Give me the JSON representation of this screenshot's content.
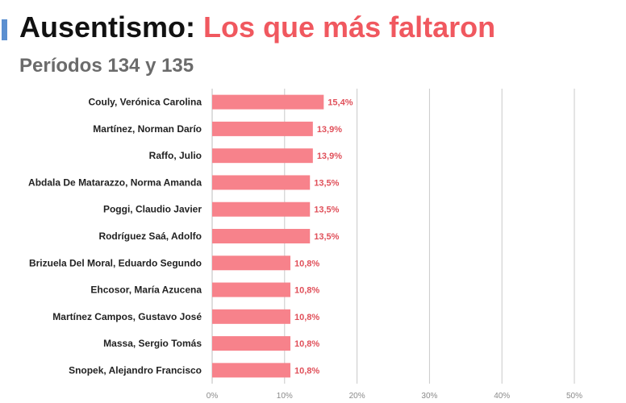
{
  "header": {
    "title_prefix": "Ausentismo:",
    "title_highlight": "Los que más faltaron",
    "subtitle": "Períodos 134 y 135"
  },
  "colors": {
    "accent": "#5b8fd0",
    "highlight": "#f0585f",
    "bar": "#f7828b",
    "value_text": "#e0505a",
    "grid": "#c9c9c9"
  },
  "chart_data": {
    "type": "bar",
    "orientation": "horizontal",
    "categories": [
      "Couly, Verónica Carolina",
      "Martínez, Norman Darío",
      "Raffo, Julio",
      "Abdala De Matarazzo, Norma Amanda",
      "Poggi, Claudio Javier",
      "Rodríguez Saá, Adolfo",
      "Brizuela Del Moral, Eduardo Segundo",
      "Ehcosor, María Azucena",
      "Martínez Campos, Gustavo José",
      "Massa, Sergio Tomás",
      "Snopek, Alejandro Francisco"
    ],
    "values": [
      15.4,
      13.9,
      13.9,
      13.5,
      13.5,
      13.5,
      10.8,
      10.8,
      10.8,
      10.8,
      10.8
    ],
    "value_labels": [
      "15,4%",
      "13,9%",
      "13,9%",
      "13,5%",
      "13,5%",
      "13,5%",
      "10,8%",
      "10,8%",
      "10,8%",
      "10,8%",
      "10,8%"
    ],
    "xlim": [
      0,
      50
    ],
    "ticks": [
      0,
      10,
      20,
      30,
      40,
      50
    ],
    "tick_labels": [
      "0%",
      "10%",
      "20%",
      "30%",
      "40%",
      "50%"
    ],
    "grid": true,
    "legend": "none"
  }
}
